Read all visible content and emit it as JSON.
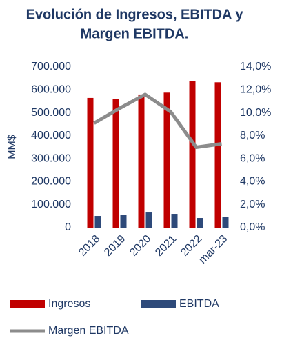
{
  "chart_data": {
    "type": "bar-line",
    "title": [
      "Evolución de Ingresos, EBITDA y",
      "Margen EBITDA."
    ],
    "ylabel": "MM$",
    "categories": [
      "2018",
      "2019",
      "2020",
      "2021",
      "2022",
      "mar-23"
    ],
    "series": [
      {
        "name": "Ingresos",
        "color": "#c00000",
        "type": "bar",
        "values": [
          565000,
          560000,
          580000,
          588000,
          637000,
          633000
        ]
      },
      {
        "name": "EBITDA",
        "color": "#2e4a7a",
        "type": "bar",
        "values": [
          51000,
          57000,
          66000,
          60000,
          42000,
          48000
        ]
      },
      {
        "name": "Margen EBITDA",
        "color": "#8c8c8c",
        "type": "line",
        "axis": "y2",
        "values": [
          9.1,
          10.4,
          11.6,
          10.1,
          7.0,
          7.3
        ]
      }
    ],
    "ylim": [
      0,
      700000
    ],
    "yticks": [
      0,
      {
        "value": 100000,
        "label": "100.000"
      },
      {
        "value": 200000,
        "label": "200.000"
      },
      {
        "value": 300000,
        "label": "300.000"
      },
      {
        "value": 400000,
        "label": "400.000"
      },
      {
        "value": 500000,
        "label": "500.000"
      },
      {
        "value": 600000,
        "label": "600.000"
      },
      {
        "value": 700000,
        "label": "700.000"
      }
    ],
    "y2lim": [
      0,
      14
    ],
    "y2ticks": [
      {
        "value": 0,
        "label": "0,0%"
      },
      {
        "value": 2,
        "label": "2,0%"
      },
      {
        "value": 4,
        "label": "4,0%"
      },
      {
        "value": 6,
        "label": "6,0%"
      },
      {
        "value": 8,
        "label": "8,0%"
      },
      {
        "value": 10,
        "label": "10,0%"
      },
      {
        "value": 12,
        "label": "12,0%"
      },
      {
        "value": 14,
        "label": "14,0%"
      }
    ],
    "legend": "bottom"
  }
}
